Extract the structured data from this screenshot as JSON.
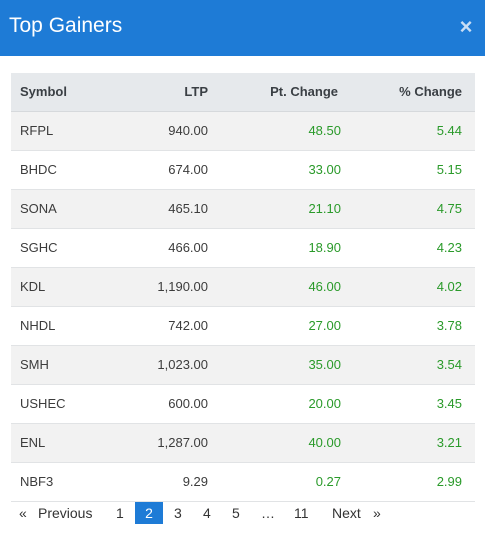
{
  "header": {
    "title": "Top Gainers",
    "close_icon": "×"
  },
  "table": {
    "columns": [
      "Symbol",
      "LTP",
      "Pt. Change",
      "% Change"
    ],
    "rows": [
      {
        "symbol": "RFPL",
        "ltp": "940.00",
        "pt": "48.50",
        "pct": "5.44"
      },
      {
        "symbol": "BHDC",
        "ltp": "674.00",
        "pt": "33.00",
        "pct": "5.15"
      },
      {
        "symbol": "SONA",
        "ltp": "465.10",
        "pt": "21.10",
        "pct": "4.75"
      },
      {
        "symbol": "SGHC",
        "ltp": "466.00",
        "pt": "18.90",
        "pct": "4.23"
      },
      {
        "symbol": "KDL",
        "ltp": "1,190.00",
        "pt": "46.00",
        "pct": "4.02"
      },
      {
        "symbol": "NHDL",
        "ltp": "742.00",
        "pt": "27.00",
        "pct": "3.78"
      },
      {
        "symbol": "SMH",
        "ltp": "1,023.00",
        "pt": "35.00",
        "pct": "3.54"
      },
      {
        "symbol": "USHEC",
        "ltp": "600.00",
        "pt": "20.00",
        "pct": "3.45"
      },
      {
        "symbol": "ENL",
        "ltp": "1,287.00",
        "pt": "40.00",
        "pct": "3.21"
      },
      {
        "symbol": "NBF3",
        "ltp": "9.29",
        "pt": "0.27",
        "pct": "2.99"
      }
    ]
  },
  "pager": {
    "first": "«",
    "previous": "Previous",
    "pages": [
      "1",
      "2",
      "3",
      "4",
      "5",
      "…",
      "11"
    ],
    "active_page": "2",
    "next": "Next",
    "last": "»"
  },
  "colors": {
    "accent": "#1e7bd6",
    "positive": "#2a9a2a"
  }
}
